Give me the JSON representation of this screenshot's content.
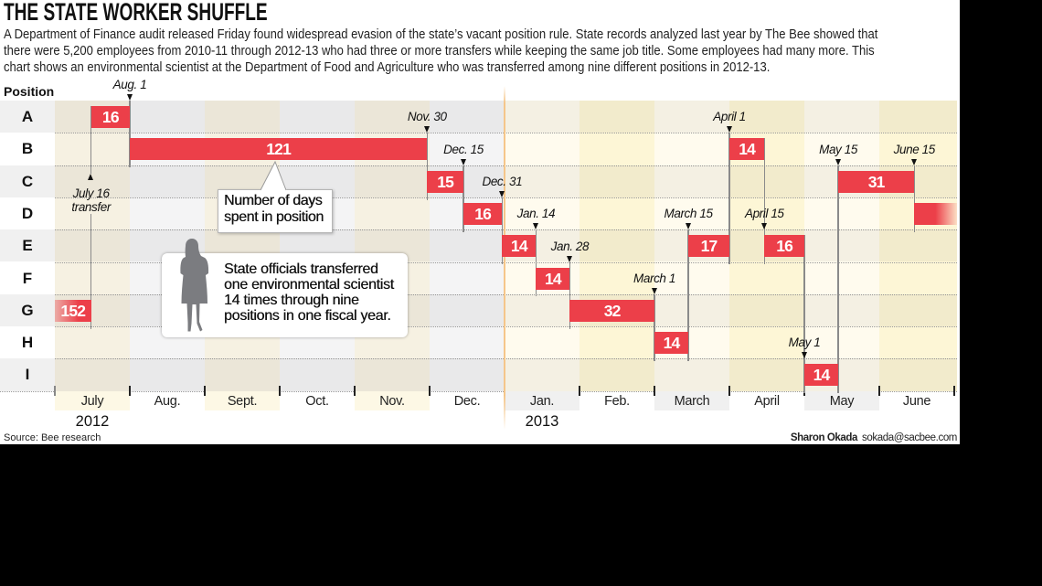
{
  "header": {
    "title": "THE STATE WORKER SHUFFLE",
    "intro_lines": [
      "A Department of Finance audit released Friday found widespread evasion of the state’s vacant position rule. State records analyzed last year by The Bee showed that",
      "there were 5,200 employees from 2010-11 through 2012-13 who had three or more transfers while keeping the same job title. Some employees had many more. This",
      "chart shows an environmental scientist at the Department of Food and Agriculture who was transferred among nine different positions in 2012-13."
    ]
  },
  "chart_data": {
    "type": "bar",
    "subtype": "gantt-timeline",
    "title": "THE STATE WORKER SHUFFLE",
    "ylabel": "Position",
    "xlabel": "",
    "categories": [
      "A",
      "B",
      "C",
      "D",
      "E",
      "F",
      "G",
      "H",
      "I"
    ],
    "x_ticks": [
      "July",
      "Aug.",
      "Sept.",
      "Oct.",
      "Nov.",
      "Dec.",
      "Jan.",
      "Feb.",
      "March",
      "April",
      "May",
      "June"
    ],
    "x_years": [
      {
        "label": "2012",
        "starts_at": "July"
      },
      {
        "label": "2013",
        "starts_at": "Jan."
      }
    ],
    "xlim": [
      "2012-07-01",
      "2013-06-30"
    ],
    "value_unit": "days spent in position",
    "grid": true,
    "legend": "none",
    "stints": [
      {
        "position": "G",
        "start": null,
        "end": "2012-07-16",
        "days": 152,
        "continues_before": true
      },
      {
        "position": "A",
        "start": "2012-07-16",
        "end": "2012-08-01",
        "days": 16
      },
      {
        "position": "B",
        "start": "2012-08-01",
        "end": "2012-11-30",
        "days": 121
      },
      {
        "position": "C",
        "start": "2012-11-30",
        "end": "2012-12-15",
        "days": 15
      },
      {
        "position": "D",
        "start": "2012-12-15",
        "end": "2012-12-31",
        "days": 16
      },
      {
        "position": "E",
        "start": "2012-12-31",
        "end": "2013-01-14",
        "days": 14
      },
      {
        "position": "F",
        "start": "2013-01-14",
        "end": "2013-01-28",
        "days": 14
      },
      {
        "position": "G",
        "start": "2013-01-28",
        "end": "2013-03-01",
        "days": 32
      },
      {
        "position": "H",
        "start": "2013-03-01",
        "end": "2013-03-15",
        "days": 14
      },
      {
        "position": "E",
        "start": "2013-03-15",
        "end": "2013-04-01",
        "days": 17
      },
      {
        "position": "B",
        "start": "2013-04-01",
        "end": "2013-04-15",
        "days": 14
      },
      {
        "position": "E",
        "start": "2013-04-15",
        "end": "2013-05-01",
        "days": 16
      },
      {
        "position": "I",
        "start": "2013-05-01",
        "end": "2013-05-15",
        "days": 14
      },
      {
        "position": "C",
        "start": "2013-05-15",
        "end": "2013-06-15",
        "days": 31
      },
      {
        "position": "D",
        "start": "2013-06-15",
        "end": null,
        "days": null,
        "continues_after": true
      }
    ],
    "transfers": [
      {
        "date": "2012-07-16",
        "label": "July 16",
        "note": "transfer",
        "marker_row": "C",
        "marker_dir": "up"
      },
      {
        "date": "2012-08-01",
        "label": "Aug. 1",
        "marker_row": "A",
        "marker_dir": "down"
      },
      {
        "date": "2012-11-30",
        "label": "Nov. 30",
        "marker_row": "B",
        "marker_dir": "down"
      },
      {
        "date": "2012-12-15",
        "label": "Dec. 15",
        "marker_row": "C",
        "marker_dir": "down"
      },
      {
        "date": "2012-12-31",
        "label": "Dec. 31",
        "marker_row": "D",
        "marker_dir": "down"
      },
      {
        "date": "2013-01-14",
        "label": "Jan. 14",
        "marker_row": "E",
        "marker_dir": "down"
      },
      {
        "date": "2013-01-28",
        "label": "Jan. 28",
        "marker_row": "F",
        "marker_dir": "down"
      },
      {
        "date": "2013-03-01",
        "label": "March 1",
        "marker_row": "G",
        "marker_dir": "down"
      },
      {
        "date": "2013-03-15",
        "label": "March 15",
        "marker_row": "E",
        "marker_dir": "down"
      },
      {
        "date": "2013-04-01",
        "label": "April 1",
        "marker_row": "B",
        "marker_dir": "down"
      },
      {
        "date": "2013-04-15",
        "label": "April 15",
        "marker_row": "E",
        "marker_dir": "down"
      },
      {
        "date": "2013-05-01",
        "label": "May 1",
        "marker_row": "I",
        "marker_dir": "down"
      },
      {
        "date": "2013-05-15",
        "label": "May 15",
        "marker_row": "C",
        "marker_dir": "down"
      },
      {
        "date": "2013-06-15",
        "label": "June 15",
        "marker_row": "C",
        "marker_dir": "down"
      }
    ],
    "annotations": [
      {
        "id": "days-callout",
        "text_lines": [
          "Number of days",
          "spent in position"
        ]
      },
      {
        "id": "summary-callout",
        "icon": "woman-silhouette-icon",
        "text_lines": [
          "State officials transferred",
          "one environmental scientist",
          "14 times through nine",
          "positions in one fiscal year."
        ]
      }
    ]
  },
  "colors": {
    "bar": "#ec3f49",
    "bar_label": "#ffffff",
    "year_divider": "#f5c68a"
  },
  "footer": {
    "source": "Source: Bee research",
    "credit_name": "Sharon Okada",
    "credit_email": "sokada@sacbee.com"
  }
}
